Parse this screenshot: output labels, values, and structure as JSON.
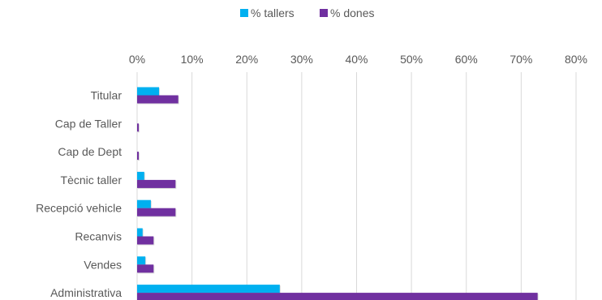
{
  "chart_data": {
    "type": "bar",
    "orientation": "horizontal",
    "categories": [
      "Titular",
      "Cap de Taller",
      "Cap de Dept",
      "Tècnic taller",
      "Recepció vehicle",
      "Recanvis",
      "Vendes",
      "Administrativa"
    ],
    "series": [
      {
        "name": "% tallers",
        "color": "#00B0F0",
        "values": [
          4,
          0,
          0,
          1.3,
          2.5,
          1,
          1.5,
          26
        ]
      },
      {
        "name": "% dones",
        "color": "#7030A0",
        "values": [
          7.5,
          0.3,
          0.3,
          7,
          7,
          3,
          3,
          73
        ]
      }
    ],
    "xlim": [
      0,
      80
    ],
    "xticks": [
      "0%",
      "10%",
      "20%",
      "30%",
      "40%",
      "50%",
      "60%",
      "70%",
      "80%"
    ],
    "grid": true,
    "legend_position": "top",
    "title": ""
  }
}
